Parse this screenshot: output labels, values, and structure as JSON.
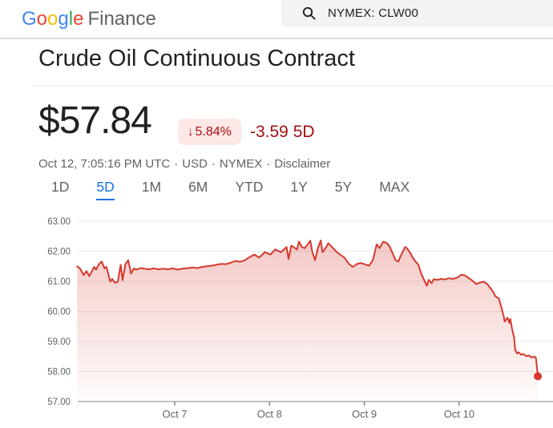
{
  "header": {
    "logo": {
      "letters": [
        [
          "G",
          "#4285F4"
        ],
        [
          "o",
          "#EA4335"
        ],
        [
          "o",
          "#FBBC05"
        ],
        [
          "g",
          "#4285F4"
        ],
        [
          "l",
          "#34A853"
        ],
        [
          "e",
          "#EA4335"
        ]
      ],
      "product": "Finance"
    },
    "search": {
      "icon": "search-magnifier",
      "value": "NYMEX: CLW00"
    }
  },
  "quote": {
    "title": "Crude Oil Continuous Contract",
    "price": "$57.84",
    "badge": {
      "arrow": "↓",
      "percent": "5.84%"
    },
    "change_text": "-3.59 5D",
    "meta": {
      "datetime": "Oct 12, 7:05:16 PM UTC",
      "currency": "USD",
      "exchange": "NYMEX",
      "disclaimer_label": "Disclaimer",
      "separator": "·"
    },
    "colors": {
      "down_text": "#a50e0e",
      "badge_bg": "#fce8e6"
    }
  },
  "range_tabs": {
    "active_color": "#1a73e8",
    "items": [
      {
        "label": "1D",
        "active": false
      },
      {
        "label": "5D",
        "active": true
      },
      {
        "label": "1M",
        "active": false
      },
      {
        "label": "6M",
        "active": false
      },
      {
        "label": "YTD",
        "active": false
      },
      {
        "label": "1Y",
        "active": false
      },
      {
        "label": "5Y",
        "active": false
      },
      {
        "label": "MAX",
        "active": false
      }
    ]
  },
  "chart_data": {
    "type": "area",
    "title": "Crude Oil Continuous Contract — past 5 days",
    "period": "5D",
    "last_value": 57.84,
    "line_color": "#d5392d",
    "grid_color": "#e8eaed",
    "axis_color": "#80868b",
    "label_color": "#5f6368",
    "y_axis": {
      "min": 57,
      "max": 63,
      "tick_values": [
        63,
        62,
        61,
        60,
        59,
        58,
        57
      ],
      "tick_labels": [
        "63.00",
        "62.00",
        "61.00",
        "60.00",
        "59.00",
        "58.00",
        "57.00"
      ]
    },
    "x_axis": {
      "unit": "days since Oct 6",
      "tick_days": [
        1,
        2,
        3,
        4
      ],
      "tick_labels": [
        "Oct 7",
        "Oct 8",
        "Oct 9",
        "Oct 10"
      ]
    },
    "points": [
      [
        -0.03,
        61.5
      ],
      [
        0.0,
        61.43
      ],
      [
        0.04,
        61.21
      ],
      [
        0.07,
        61.34
      ],
      [
        0.1,
        61.17
      ],
      [
        0.15,
        61.48
      ],
      [
        0.17,
        61.39
      ],
      [
        0.2,
        61.57
      ],
      [
        0.23,
        61.66
      ],
      [
        0.26,
        61.43
      ],
      [
        0.28,
        61.48
      ],
      [
        0.32,
        60.99
      ],
      [
        0.34,
        61.08
      ],
      [
        0.37,
        60.95
      ],
      [
        0.4,
        60.99
      ],
      [
        0.43,
        61.55
      ],
      [
        0.45,
        61.04
      ],
      [
        0.48,
        61.57
      ],
      [
        0.51,
        61.7
      ],
      [
        0.54,
        61.26
      ],
      [
        0.57,
        61.43
      ],
      [
        0.59,
        61.39
      ],
      [
        0.64,
        61.44
      ],
      [
        0.68,
        61.42
      ],
      [
        0.73,
        61.4
      ],
      [
        0.78,
        61.43
      ],
      [
        0.83,
        61.4
      ],
      [
        0.88,
        61.42
      ],
      [
        0.93,
        61.4
      ],
      [
        0.98,
        61.43
      ],
      [
        1.03,
        61.39
      ],
      [
        1.08,
        61.42
      ],
      [
        1.14,
        61.44
      ],
      [
        1.19,
        61.46
      ],
      [
        1.24,
        61.44
      ],
      [
        1.29,
        61.48
      ],
      [
        1.34,
        61.5
      ],
      [
        1.39,
        61.52
      ],
      [
        1.44,
        61.55
      ],
      [
        1.49,
        61.58
      ],
      [
        1.54,
        61.57
      ],
      [
        1.59,
        61.62
      ],
      [
        1.64,
        61.68
      ],
      [
        1.69,
        61.65
      ],
      [
        1.74,
        61.7
      ],
      [
        1.78,
        61.79
      ],
      [
        1.84,
        61.89
      ],
      [
        1.89,
        61.79
      ],
      [
        1.95,
        61.97
      ],
      [
        2.01,
        61.89
      ],
      [
        2.06,
        62.06
      ],
      [
        2.12,
        61.97
      ],
      [
        2.18,
        62.14
      ],
      [
        2.2,
        61.74
      ],
      [
        2.23,
        62.19
      ],
      [
        2.29,
        62.06
      ],
      [
        2.31,
        62.32
      ],
      [
        2.34,
        62.15
      ],
      [
        2.37,
        62.1
      ],
      [
        2.4,
        62.22
      ],
      [
        2.43,
        62.35
      ],
      [
        2.45,
        62.0
      ],
      [
        2.48,
        61.7
      ],
      [
        2.51,
        62.1
      ],
      [
        2.54,
        62.36
      ],
      [
        2.56,
        61.97
      ],
      [
        2.6,
        62.15
      ],
      [
        2.62,
        62.27
      ],
      [
        2.67,
        62.1
      ],
      [
        2.71,
        61.97
      ],
      [
        2.75,
        61.88
      ],
      [
        2.79,
        61.79
      ],
      [
        2.84,
        61.57
      ],
      [
        2.88,
        61.48
      ],
      [
        2.92,
        61.57
      ],
      [
        2.96,
        61.61
      ],
      [
        3.0,
        61.57
      ],
      [
        3.05,
        61.52
      ],
      [
        3.09,
        61.7
      ],
      [
        3.13,
        62.23
      ],
      [
        3.16,
        62.1
      ],
      [
        3.2,
        62.32
      ],
      [
        3.24,
        62.27
      ],
      [
        3.27,
        62.14
      ],
      [
        3.3,
        61.92
      ],
      [
        3.33,
        61.7
      ],
      [
        3.36,
        61.66
      ],
      [
        3.38,
        61.83
      ],
      [
        3.43,
        62.14
      ],
      [
        3.45,
        62.1
      ],
      [
        3.49,
        61.92
      ],
      [
        3.51,
        61.79
      ],
      [
        3.54,
        61.66
      ],
      [
        3.57,
        61.55
      ],
      [
        3.6,
        61.25
      ],
      [
        3.64,
        60.98
      ],
      [
        3.66,
        60.85
      ],
      [
        3.68,
        61.05
      ],
      [
        3.71,
        60.94
      ],
      [
        3.73,
        61.07
      ],
      [
        3.77,
        61.05
      ],
      [
        3.81,
        61.08
      ],
      [
        3.85,
        61.06
      ],
      [
        3.89,
        61.1
      ],
      [
        3.93,
        61.08
      ],
      [
        3.98,
        61.12
      ],
      [
        4.02,
        61.22
      ],
      [
        4.06,
        61.2
      ],
      [
        4.1,
        61.11
      ],
      [
        4.15,
        61.0
      ],
      [
        4.18,
        60.91
      ],
      [
        4.21,
        60.95
      ],
      [
        4.26,
        60.99
      ],
      [
        4.3,
        60.9
      ],
      [
        4.33,
        60.77
      ],
      [
        4.36,
        60.64
      ],
      [
        4.38,
        60.51
      ],
      [
        4.42,
        60.42
      ],
      [
        4.44,
        60.19
      ],
      [
        4.47,
        59.84
      ],
      [
        4.48,
        59.66
      ],
      [
        4.51,
        59.79
      ],
      [
        4.53,
        59.61
      ],
      [
        4.54,
        59.75
      ],
      [
        4.56,
        59.39
      ],
      [
        4.58,
        59.13
      ],
      [
        4.59,
        58.73
      ],
      [
        4.61,
        58.6
      ],
      [
        4.63,
        58.64
      ],
      [
        4.65,
        58.56
      ],
      [
        4.68,
        58.58
      ],
      [
        4.71,
        58.51
      ],
      [
        4.74,
        58.53
      ],
      [
        4.76,
        58.47
      ],
      [
        4.8,
        58.49
      ],
      [
        4.81,
        58.45
      ],
      [
        4.83,
        57.84
      ]
    ]
  }
}
